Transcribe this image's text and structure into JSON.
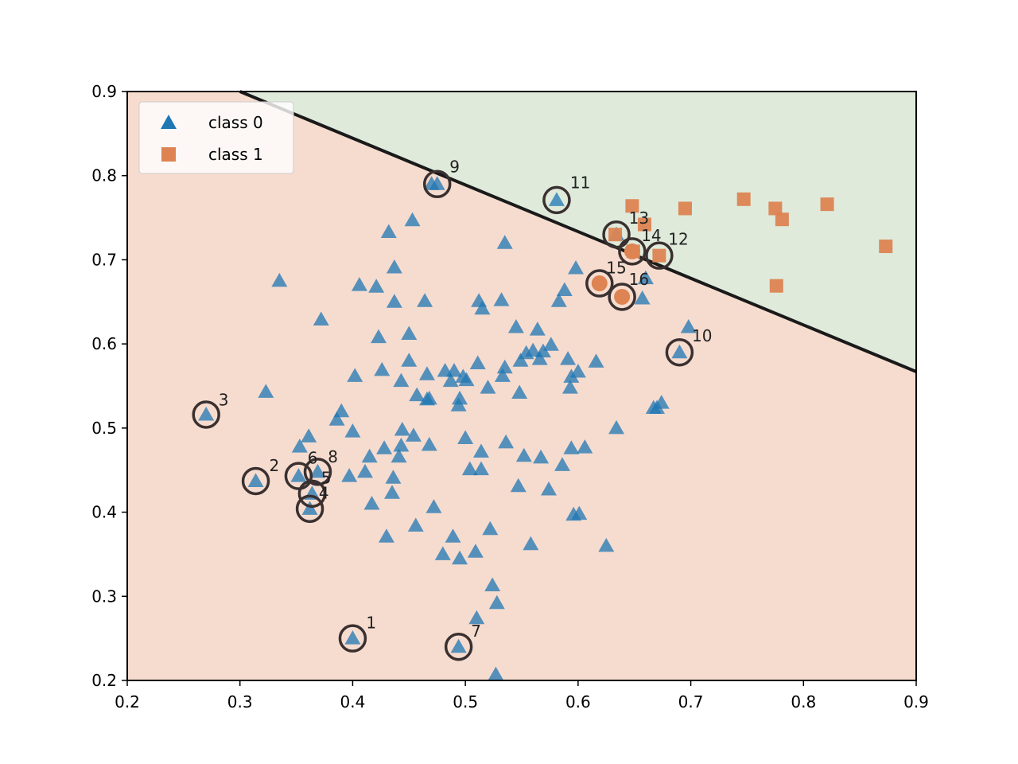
{
  "chart_data": {
    "type": "scatter",
    "title": "",
    "xlabel": "",
    "ylabel": "",
    "xlim": [
      0.2,
      0.9
    ],
    "ylim": [
      0.2,
      0.9
    ],
    "xticks": [
      "0.2",
      "0.3",
      "0.4",
      "0.5",
      "0.6",
      "0.7",
      "0.8",
      "0.9"
    ],
    "yticks": [
      "0.2",
      "0.3",
      "0.4",
      "0.5",
      "0.6",
      "0.7",
      "0.8",
      "0.9"
    ],
    "grid": false,
    "legend_position": "top-left",
    "decision_boundary": [
      [
        0.3,
        0.9
      ],
      [
        0.9,
        0.567
      ]
    ],
    "regions": {
      "class_0_color": "#f6dccf",
      "class_1_color": "#dfeadb"
    },
    "series": [
      {
        "name": "class 0",
        "marker": "triangle",
        "color": "#1f77b4",
        "points": [
          [
            0.27,
            0.516
          ],
          [
            0.314,
            0.437
          ],
          [
            0.323,
            0.543
          ],
          [
            0.335,
            0.675
          ],
          [
            0.352,
            0.443
          ],
          [
            0.353,
            0.478
          ],
          [
            0.361,
            0.49
          ],
          [
            0.362,
            0.404
          ],
          [
            0.364,
            0.422
          ],
          [
            0.369,
            0.448
          ],
          [
            0.372,
            0.629
          ],
          [
            0.386,
            0.51
          ],
          [
            0.39,
            0.52
          ],
          [
            0.397,
            0.443
          ],
          [
            0.4,
            0.25
          ],
          [
            0.4,
            0.496
          ],
          [
            0.402,
            0.562
          ],
          [
            0.406,
            0.67
          ],
          [
            0.411,
            0.448
          ],
          [
            0.415,
            0.466
          ],
          [
            0.417,
            0.41
          ],
          [
            0.421,
            0.668
          ],
          [
            0.423,
            0.608
          ],
          [
            0.426,
            0.569
          ],
          [
            0.428,
            0.476
          ],
          [
            0.43,
            0.371
          ],
          [
            0.432,
            0.733
          ],
          [
            0.435,
            0.423
          ],
          [
            0.436,
            0.441
          ],
          [
            0.437,
            0.691
          ],
          [
            0.437,
            0.65
          ],
          [
            0.441,
            0.466
          ],
          [
            0.443,
            0.479
          ],
          [
            0.443,
            0.556
          ],
          [
            0.444,
            0.498
          ],
          [
            0.45,
            0.58
          ],
          [
            0.45,
            0.612
          ],
          [
            0.453,
            0.747
          ],
          [
            0.454,
            0.491
          ],
          [
            0.456,
            0.384
          ],
          [
            0.457,
            0.539
          ],
          [
            0.464,
            0.651
          ],
          [
            0.466,
            0.534
          ],
          [
            0.466,
            0.564
          ],
          [
            0.468,
            0.535
          ],
          [
            0.468,
            0.48
          ],
          [
            0.47,
            0.79
          ],
          [
            0.472,
            0.406
          ],
          [
            0.475,
            0.79
          ],
          [
            0.48,
            0.35
          ],
          [
            0.482,
            0.568
          ],
          [
            0.487,
            0.556
          ],
          [
            0.489,
            0.371
          ],
          [
            0.49,
            0.568
          ],
          [
            0.494,
            0.24
          ],
          [
            0.494,
            0.527
          ],
          [
            0.495,
            0.345
          ],
          [
            0.495,
            0.535
          ],
          [
            0.498,
            0.561
          ],
          [
            0.5,
            0.488
          ],
          [
            0.501,
            0.557
          ],
          [
            0.504,
            0.451
          ],
          [
            0.509,
            0.353
          ],
          [
            0.51,
            0.274
          ],
          [
            0.511,
            0.577
          ],
          [
            0.512,
            0.651
          ],
          [
            0.514,
            0.472
          ],
          [
            0.514,
            0.451
          ],
          [
            0.515,
            0.642
          ],
          [
            0.52,
            0.548
          ],
          [
            0.522,
            0.38
          ],
          [
            0.524,
            0.313
          ],
          [
            0.527,
            0.207
          ],
          [
            0.528,
            0.292
          ],
          [
            0.532,
            0.652
          ],
          [
            0.533,
            0.562
          ],
          [
            0.535,
            0.572
          ],
          [
            0.536,
            0.483
          ],
          [
            0.535,
            0.72
          ],
          [
            0.545,
            0.62
          ],
          [
            0.547,
            0.431
          ],
          [
            0.548,
            0.542
          ],
          [
            0.549,
            0.58
          ],
          [
            0.552,
            0.467
          ],
          [
            0.554,
            0.589
          ],
          [
            0.558,
            0.362
          ],
          [
            0.56,
            0.592
          ],
          [
            0.564,
            0.617
          ],
          [
            0.566,
            0.582
          ],
          [
            0.567,
            0.465
          ],
          [
            0.569,
            0.591
          ],
          [
            0.574,
            0.427
          ],
          [
            0.576,
            0.599
          ],
          [
            0.583,
            0.651
          ],
          [
            0.586,
            0.456
          ],
          [
            0.588,
            0.664
          ],
          [
            0.591,
            0.582
          ],
          [
            0.593,
            0.548
          ],
          [
            0.594,
            0.561
          ],
          [
            0.594,
            0.476
          ],
          [
            0.596,
            0.397
          ],
          [
            0.598,
            0.69
          ],
          [
            0.6,
            0.567
          ],
          [
            0.601,
            0.398
          ],
          [
            0.606,
            0.477
          ],
          [
            0.616,
            0.579
          ],
          [
            0.625,
            0.36
          ],
          [
            0.634,
            0.5
          ],
          [
            0.667,
            0.524
          ],
          [
            0.67,
            0.524
          ],
          [
            0.674,
            0.53
          ],
          [
            0.69,
            0.59
          ],
          [
            0.698,
            0.62
          ],
          [
            0.581,
            0.771
          ],
          [
            0.66,
            0.678
          ],
          [
            0.657,
            0.654
          ],
          [
            0.634,
            0.73
          ]
        ]
      },
      {
        "name": "class 1",
        "marker": "square",
        "color": "#dd8452",
        "points": [
          [
            0.633,
            0.73
          ],
          [
            0.648,
            0.764
          ],
          [
            0.659,
            0.742
          ],
          [
            0.672,
            0.705
          ],
          [
            0.695,
            0.761
          ],
          [
            0.747,
            0.772
          ],
          [
            0.775,
            0.761
          ],
          [
            0.781,
            0.748
          ],
          [
            0.776,
            0.669
          ],
          [
            0.821,
            0.766
          ],
          [
            0.873,
            0.716
          ],
          [
            0.649,
            0.71
          ]
        ]
      },
      {
        "name": "",
        "marker": "circle",
        "color": "#dd8452",
        "points": [
          [
            0.619,
            0.672
          ],
          [
            0.639,
            0.656
          ],
          [
            0.648,
            0.71
          ]
        ]
      }
    ],
    "annotations": [
      {
        "label": "1",
        "x": 0.4,
        "y": 0.25,
        "tx": 0.412,
        "ty": 0.262
      },
      {
        "label": "2",
        "x": 0.314,
        "y": 0.437,
        "tx": 0.326,
        "ty": 0.449
      },
      {
        "label": "3",
        "x": 0.27,
        "y": 0.516,
        "tx": 0.281,
        "ty": 0.527
      },
      {
        "label": "4",
        "x": 0.362,
        "y": 0.404,
        "tx": 0.37,
        "ty": 0.416
      },
      {
        "label": "5",
        "x": 0.364,
        "y": 0.422,
        "tx": 0.372,
        "ty": 0.434
      },
      {
        "label": "6",
        "x": 0.352,
        "y": 0.443,
        "tx": 0.36,
        "ty": 0.458
      },
      {
        "label": "7",
        "x": 0.494,
        "y": 0.24,
        "tx": 0.505,
        "ty": 0.252
      },
      {
        "label": "8",
        "x": 0.369,
        "y": 0.448,
        "tx": 0.378,
        "ty": 0.459
      },
      {
        "label": "9",
        "x": 0.475,
        "y": 0.79,
        "tx": 0.486,
        "ty": 0.804
      },
      {
        "label": "10",
        "x": 0.69,
        "y": 0.59,
        "tx": 0.701,
        "ty": 0.603
      },
      {
        "label": "11",
        "x": 0.581,
        "y": 0.771,
        "tx": 0.593,
        "ty": 0.785
      },
      {
        "label": "12",
        "x": 0.672,
        "y": 0.705,
        "tx": 0.68,
        "ty": 0.718
      },
      {
        "label": "13",
        "x": 0.634,
        "y": 0.73,
        "tx": 0.645,
        "ty": 0.743
      },
      {
        "label": "14",
        "x": 0.648,
        "y": 0.71,
        "tx": 0.656,
        "ty": 0.722
      },
      {
        "label": "15",
        "x": 0.619,
        "y": 0.672,
        "tx": 0.625,
        "ty": 0.684
      },
      {
        "label": "16",
        "x": 0.639,
        "y": 0.656,
        "tx": 0.645,
        "ty": 0.67
      }
    ],
    "legend": [
      {
        "label": "class 0",
        "marker": "triangle",
        "color": "#1f77b4"
      },
      {
        "label": "class 1",
        "marker": "square",
        "color": "#dd8452"
      }
    ]
  }
}
